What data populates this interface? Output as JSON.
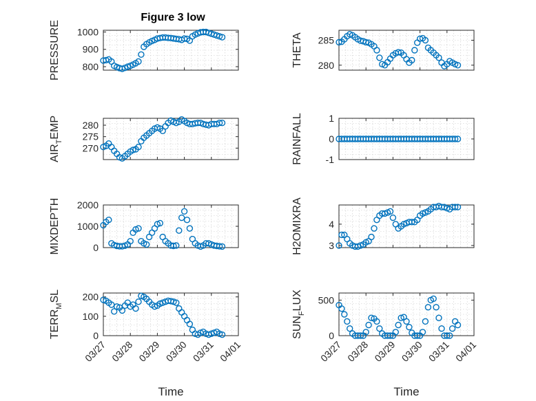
{
  "figure": {
    "title": "Figure 3 low",
    "xlabel": "Time",
    "x_tick_labels": [
      "03/27",
      "03/28",
      "03/29",
      "03/30",
      "03/31",
      "04/01"
    ],
    "marker_color": "#0072BD"
  },
  "chart_data": [
    {
      "type": "scatter",
      "ylabel": "PRESSURE",
      "yticks": [
        800,
        900,
        1000
      ],
      "ylim": [
        780,
        1010
      ],
      "xlim": [
        0,
        5
      ],
      "x": [
        0.0,
        0.1,
        0.2,
        0.3,
        0.4,
        0.5,
        0.6,
        0.7,
        0.8,
        0.9,
        1.0,
        1.1,
        1.2,
        1.3,
        1.4,
        1.5,
        1.6,
        1.7,
        1.8,
        1.9,
        2.0,
        2.1,
        2.2,
        2.3,
        2.4,
        2.5,
        2.6,
        2.7,
        2.8,
        2.9,
        3.0,
        3.1,
        3.2,
        3.3,
        3.4,
        3.5,
        3.6,
        3.7,
        3.8,
        3.9,
        4.0,
        4.1,
        4.2,
        4.3,
        4.4
      ],
      "y": [
        835,
        838,
        842,
        830,
        805,
        798,
        792,
        788,
        793,
        800,
        805,
        812,
        820,
        830,
        870,
        915,
        930,
        940,
        948,
        955,
        962,
        965,
        968,
        968,
        966,
        965,
        963,
        960,
        958,
        955,
        962,
        960,
        950,
        975,
        985,
        992,
        998,
        1000,
        1000,
        995,
        990,
        985,
        980,
        975,
        970
      ]
    },
    {
      "type": "scatter",
      "ylabel": "THETA",
      "yticks": [
        280,
        285
      ],
      "ylim": [
        279,
        287
      ],
      "xlim": [
        0,
        5
      ],
      "x": [
        0.0,
        0.1,
        0.2,
        0.3,
        0.4,
        0.5,
        0.6,
        0.7,
        0.8,
        0.9,
        1.0,
        1.1,
        1.2,
        1.3,
        1.4,
        1.5,
        1.6,
        1.7,
        1.8,
        1.9,
        2.0,
        2.1,
        2.2,
        2.3,
        2.4,
        2.5,
        2.6,
        2.7,
        2.8,
        2.9,
        3.0,
        3.1,
        3.2,
        3.3,
        3.4,
        3.5,
        3.6,
        3.7,
        3.8,
        3.9,
        4.0,
        4.1,
        4.2,
        4.3,
        4.4
      ],
      "y": [
        284.6,
        284.7,
        285.2,
        285.8,
        286.2,
        286.0,
        285.6,
        285.2,
        284.9,
        284.8,
        284.6,
        284.5,
        284.2,
        283.8,
        283.0,
        281.5,
        280.2,
        280.0,
        280.6,
        281.3,
        282.0,
        282.4,
        282.6,
        282.5,
        282.0,
        281.2,
        280.5,
        281.0,
        283.0,
        284.5,
        285.3,
        285.4,
        285.0,
        283.5,
        283.0,
        282.5,
        282.0,
        281.5,
        280.5,
        279.8,
        280.2,
        280.8,
        280.5,
        280.2,
        280.0
      ]
    },
    {
      "type": "scatter",
      "ylabel": "AIR_TEMP",
      "yticks": [
        270,
        275,
        280
      ],
      "ylim": [
        265,
        283
      ],
      "xlim": [
        0,
        5
      ],
      "x": [
        0.0,
        0.1,
        0.2,
        0.3,
        0.4,
        0.5,
        0.6,
        0.7,
        0.8,
        0.9,
        1.0,
        1.1,
        1.2,
        1.3,
        1.4,
        1.5,
        1.6,
        1.7,
        1.8,
        1.9,
        2.0,
        2.1,
        2.2,
        2.3,
        2.4,
        2.5,
        2.6,
        2.7,
        2.8,
        2.9,
        3.0,
        3.1,
        3.2,
        3.3,
        3.4,
        3.5,
        3.6,
        3.7,
        3.8,
        3.9,
        4.0,
        4.1,
        4.2,
        4.3,
        4.4
      ],
      "y": [
        270.5,
        271.0,
        272.0,
        270.5,
        268.8,
        267.5,
        266.0,
        265.5,
        266.5,
        267.5,
        268.5,
        269.2,
        269.5,
        270.5,
        273.0,
        274.5,
        275.5,
        276.5,
        277.5,
        278.5,
        279.0,
        278.5,
        277.5,
        279.5,
        281.0,
        282.0,
        281.5,
        281.0,
        281.5,
        282.5,
        281.8,
        281.0,
        280.5,
        280.5,
        280.8,
        281.0,
        281.0,
        280.5,
        280.2,
        280.0,
        280.5,
        280.5,
        280.5,
        281.0,
        281.0
      ]
    },
    {
      "type": "scatter",
      "ylabel": "RAINFALL",
      "yticks": [
        -1,
        0,
        1
      ],
      "ylim": [
        -1,
        1
      ],
      "xlim": [
        0,
        5
      ],
      "x": [
        0.0,
        0.1,
        0.2,
        0.3,
        0.4,
        0.5,
        0.6,
        0.7,
        0.8,
        0.9,
        1.0,
        1.1,
        1.2,
        1.3,
        1.4,
        1.5,
        1.6,
        1.7,
        1.8,
        1.9,
        2.0,
        2.1,
        2.2,
        2.3,
        2.4,
        2.5,
        2.6,
        2.7,
        2.8,
        2.9,
        3.0,
        3.1,
        3.2,
        3.3,
        3.4,
        3.5,
        3.6,
        3.7,
        3.8,
        3.9,
        4.0,
        4.1,
        4.2,
        4.3,
        4.4
      ],
      "y": [
        0,
        0,
        0,
        0,
        0,
        0,
        0,
        0,
        0,
        0,
        0,
        0,
        0,
        0,
        0,
        0,
        0,
        0,
        0,
        0,
        0,
        0,
        0,
        0,
        0,
        0,
        0,
        0,
        0,
        0,
        0,
        0,
        0,
        0,
        0,
        0,
        0,
        0,
        0,
        0,
        0,
        0,
        0,
        0,
        0
      ]
    },
    {
      "type": "scatter",
      "ylabel": "MIXDEPTH",
      "yticks": [
        0,
        1000,
        2000
      ],
      "ylim": [
        0,
        2000
      ],
      "xlim": [
        0,
        5
      ],
      "x": [
        0.0,
        0.1,
        0.2,
        0.3,
        0.4,
        0.5,
        0.6,
        0.7,
        0.8,
        0.9,
        1.0,
        1.1,
        1.2,
        1.3,
        1.4,
        1.5,
        1.6,
        1.7,
        1.8,
        1.9,
        2.0,
        2.1,
        2.2,
        2.3,
        2.4,
        2.5,
        2.6,
        2.7,
        2.8,
        2.9,
        3.0,
        3.1,
        3.2,
        3.3,
        3.4,
        3.5,
        3.6,
        3.7,
        3.8,
        3.9,
        4.0,
        4.1,
        4.2,
        4.3,
        4.4
      ],
      "y": [
        1050,
        1200,
        1300,
        200,
        120,
        80,
        60,
        60,
        90,
        150,
        300,
        700,
        850,
        900,
        300,
        200,
        150,
        500,
        700,
        900,
        1100,
        1150,
        500,
        300,
        200,
        100,
        80,
        100,
        800,
        1400,
        1700,
        1300,
        900,
        400,
        200,
        100,
        50,
        100,
        200,
        200,
        150,
        100,
        80,
        60,
        50
      ]
    },
    {
      "type": "scatter",
      "ylabel": "H2OMIXRA",
      "yticks": [
        3,
        4
      ],
      "ylim": [
        2.9,
        4.9
      ],
      "xlim": [
        0,
        5
      ],
      "x": [
        0.0,
        0.1,
        0.2,
        0.3,
        0.4,
        0.5,
        0.6,
        0.7,
        0.8,
        0.9,
        1.0,
        1.1,
        1.2,
        1.3,
        1.4,
        1.5,
        1.6,
        1.7,
        1.8,
        1.9,
        2.0,
        2.1,
        2.2,
        2.3,
        2.4,
        2.5,
        2.6,
        2.7,
        2.8,
        2.9,
        3.0,
        3.1,
        3.2,
        3.3,
        3.4,
        3.5,
        3.6,
        3.7,
        3.8,
        3.9,
        4.0,
        4.1,
        4.2,
        4.3,
        4.4
      ],
      "y": [
        3.0,
        3.5,
        3.5,
        3.3,
        3.1,
        3.0,
        2.95,
        2.95,
        3.0,
        3.05,
        3.15,
        3.2,
        3.4,
        3.8,
        4.2,
        4.4,
        4.5,
        4.5,
        4.55,
        4.6,
        4.3,
        4.0,
        3.8,
        3.9,
        4.0,
        4.05,
        4.1,
        4.1,
        4.1,
        4.2,
        4.4,
        4.5,
        4.55,
        4.6,
        4.7,
        4.8,
        4.8,
        4.85,
        4.8,
        4.8,
        4.75,
        4.7,
        4.8,
        4.8,
        4.8
      ]
    },
    {
      "type": "scatter",
      "ylabel": "TERR_MSL",
      "yticks": [
        0,
        100,
        200
      ],
      "ylim": [
        0,
        220
      ],
      "xlim": [
        0,
        5
      ],
      "x": [
        0.0,
        0.1,
        0.2,
        0.3,
        0.4,
        0.5,
        0.6,
        0.7,
        0.8,
        0.9,
        1.0,
        1.1,
        1.2,
        1.3,
        1.4,
        1.5,
        1.6,
        1.7,
        1.8,
        1.9,
        2.0,
        2.1,
        2.2,
        2.3,
        2.4,
        2.5,
        2.6,
        2.7,
        2.8,
        2.9,
        3.0,
        3.1,
        3.2,
        3.3,
        3.4,
        3.5,
        3.6,
        3.7,
        3.8,
        3.9,
        4.0,
        4.1,
        4.2,
        4.3,
        4.4
      ],
      "y": [
        185,
        180,
        170,
        160,
        125,
        150,
        145,
        130,
        155,
        170,
        150,
        160,
        140,
        175,
        205,
        200,
        190,
        175,
        160,
        150,
        155,
        165,
        170,
        175,
        180,
        178,
        175,
        170,
        140,
        120,
        100,
        80,
        60,
        30,
        10,
        5,
        15,
        20,
        10,
        5,
        10,
        15,
        20,
        10,
        5
      ]
    },
    {
      "type": "scatter",
      "ylabel": "SUN_FLUX",
      "yticks": [
        0,
        500
      ],
      "ylim": [
        0,
        600
      ],
      "xlim": [
        0,
        5
      ],
      "x": [
        0.0,
        0.1,
        0.2,
        0.3,
        0.4,
        0.5,
        0.6,
        0.7,
        0.8,
        0.9,
        1.0,
        1.1,
        1.2,
        1.3,
        1.4,
        1.5,
        1.6,
        1.7,
        1.8,
        1.9,
        2.0,
        2.1,
        2.2,
        2.3,
        2.4,
        2.5,
        2.6,
        2.7,
        2.8,
        2.9,
        3.0,
        3.1,
        3.2,
        3.3,
        3.4,
        3.5,
        3.6,
        3.7,
        3.8,
        3.9,
        4.0,
        4.1,
        4.2,
        4.3,
        4.4
      ],
      "y": [
        430,
        380,
        300,
        200,
        100,
        30,
        0,
        0,
        0,
        0,
        50,
        150,
        250,
        240,
        200,
        100,
        30,
        0,
        0,
        0,
        0,
        50,
        150,
        250,
        260,
        200,
        120,
        40,
        0,
        0,
        0,
        50,
        200,
        400,
        500,
        520,
        400,
        250,
        100,
        0,
        0,
        0,
        100,
        200,
        150
      ]
    }
  ]
}
